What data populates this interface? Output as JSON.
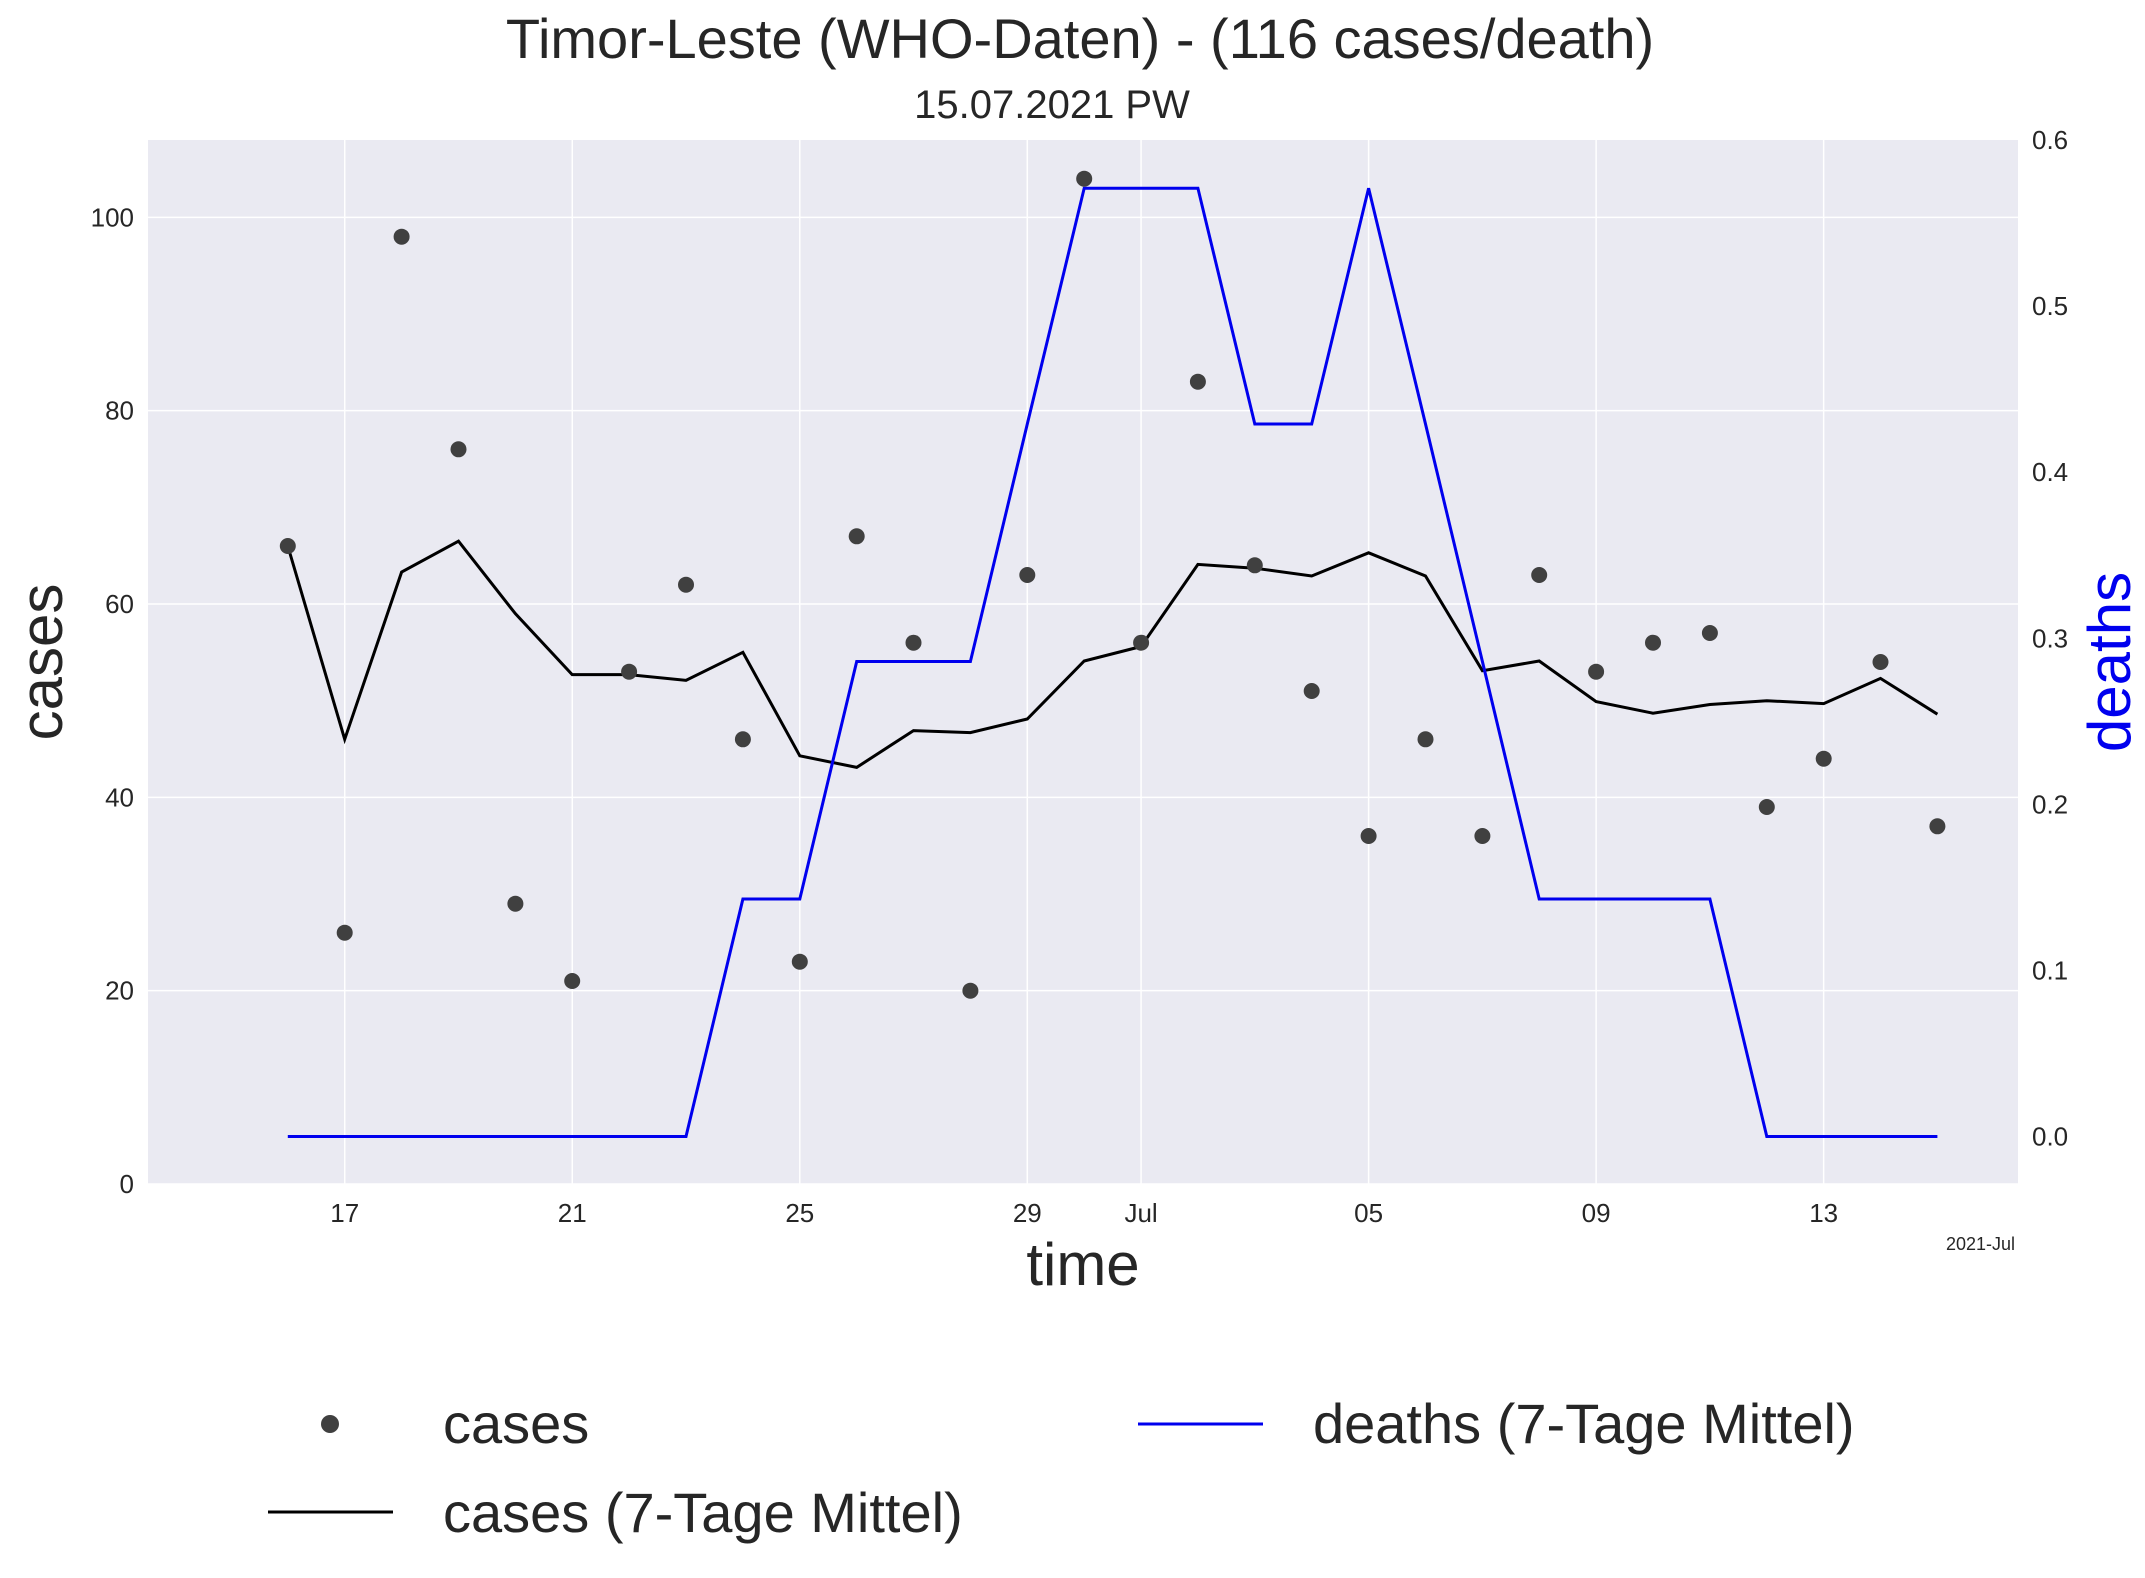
{
  "chart_data": {
    "type": "line",
    "title": "Timor-Leste (WHO-Daten) - (116 cases/death)",
    "subtitle": "15.07.2021 PW",
    "xlabel": "time",
    "ylabel": "cases",
    "y2label": "deaths",
    "x_offset_label": "2021-Jul",
    "x": [
      "2021-06-16",
      "2021-06-17",
      "2021-06-18",
      "2021-06-19",
      "2021-06-20",
      "2021-06-21",
      "2021-06-22",
      "2021-06-23",
      "2021-06-24",
      "2021-06-25",
      "2021-06-26",
      "2021-06-27",
      "2021-06-28",
      "2021-06-29",
      "2021-06-30",
      "2021-07-01",
      "2021-07-02",
      "2021-07-03",
      "2021-07-04",
      "2021-07-05",
      "2021-07-06",
      "2021-07-07",
      "2021-07-08",
      "2021-07-09",
      "2021-07-10",
      "2021-07-11",
      "2021-07-12",
      "2021-07-13",
      "2021-07-14",
      "2021-07-15"
    ],
    "xticks": [
      {
        "date": "2021-06-17",
        "label": "17"
      },
      {
        "date": "2021-06-21",
        "label": "21"
      },
      {
        "date": "2021-06-25",
        "label": "25"
      },
      {
        "date": "2021-06-29",
        "label": "29"
      },
      {
        "date": "2021-07-01",
        "label": "Jul"
      },
      {
        "date": "2021-07-05",
        "label": "05"
      },
      {
        "date": "2021-07-09",
        "label": "09"
      },
      {
        "date": "2021-07-13",
        "label": "13"
      }
    ],
    "xlim": [
      "2021-06-13T13:00",
      "2021-07-16T10:00"
    ],
    "ylim": [
      0,
      108
    ],
    "y2lim": [
      -0.0286,
      0.6
    ],
    "yticks": [
      0,
      20,
      40,
      60,
      80,
      100
    ],
    "y2ticks": [
      0.0,
      0.1,
      0.2,
      0.3,
      0.4,
      0.5,
      0.6
    ],
    "series": [
      {
        "name": "cases",
        "kind": "scatter",
        "axis": "left",
        "color": "#404040",
        "values": [
          66,
          26,
          98,
          76,
          29,
          21,
          53,
          62,
          46,
          23,
          67,
          56,
          20,
          63,
          104,
          56,
          83,
          64,
          51,
          36,
          46,
          36,
          63,
          53,
          56,
          57,
          39,
          44,
          54,
          37
        ]
      },
      {
        "name": "cases (7-Tage Mittel)",
        "kind": "line",
        "axis": "left",
        "color": "#000000",
        "values": [
          66,
          46,
          63.3,
          66.5,
          59,
          52.7,
          52.7,
          52.1,
          55,
          44.3,
          43.1,
          46.9,
          46.7,
          48.1,
          54.1,
          55.6,
          64.1,
          63.7,
          62.9,
          65.3,
          62.9,
          53.1,
          54.1,
          49.9,
          48.7,
          49.6,
          50,
          49.7,
          52.3,
          48.6
        ]
      },
      {
        "name": "deaths (7-Tage Mittel)",
        "kind": "line",
        "axis": "right",
        "color": "#0000ee",
        "values": [
          0,
          0,
          0,
          0,
          0,
          0,
          0,
          0,
          0.143,
          0.143,
          0.286,
          0.286,
          0.286,
          0.429,
          0.571,
          0.571,
          0.571,
          0.429,
          0.429,
          0.571,
          0.429,
          0.286,
          0.143,
          0.143,
          0.143,
          0.143,
          0,
          0,
          0,
          0
        ]
      }
    ],
    "legend": {
      "position": "bottom",
      "entries": [
        "cases",
        "cases (7-Tage Mittel)",
        "deaths (7-Tage Mittel)"
      ]
    },
    "grid": true,
    "colors": {
      "background": "#eaeaf2",
      "grid": "#ffffff",
      "y2label": "#0000ee"
    }
  }
}
